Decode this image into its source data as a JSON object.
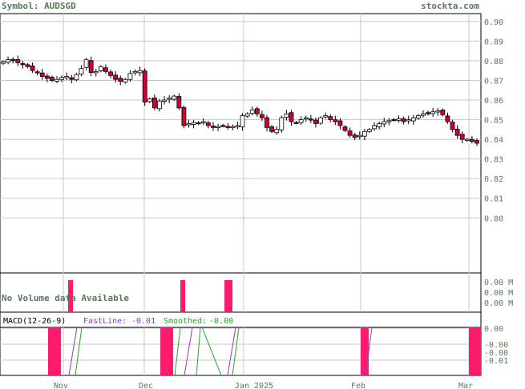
{
  "header": {
    "symbol_label": "Symbol: AUDSGD",
    "brand": "stockta.com"
  },
  "colors": {
    "label_text": "#5a7a5a",
    "grid": "#c8c8c8",
    "frame": "#000000",
    "down_candle": "#cc0033",
    "up_candle": "#ffffff",
    "volume_bar": "#ff1a6e",
    "macd_bar": "#ff1a6e",
    "fast_line": "#9933cc",
    "smoothed_line": "#22aa22"
  },
  "chart_data": [
    {
      "type": "candlestick",
      "name": "price",
      "ylim": [
        0.772,
        0.904
      ],
      "y_ticks": [
        "0.90",
        "0.89",
        "0.88",
        "0.87",
        "0.86",
        "0.85",
        "0.84",
        "0.83",
        "0.82",
        "0.81",
        "0.80"
      ],
      "x_ticks": [
        "Nov",
        "Dec",
        "Jan 2025",
        "Feb",
        "Mar"
      ],
      "grid": true,
      "closes": [
        0.8795,
        0.8805,
        0.88,
        0.879,
        0.878,
        0.877,
        0.875,
        0.874,
        0.872,
        0.871,
        0.87,
        0.8705,
        0.8715,
        0.872,
        0.8705,
        0.873,
        0.876,
        0.8805,
        0.874,
        0.8745,
        0.877,
        0.8745,
        0.8725,
        0.8705,
        0.8695,
        0.8705,
        0.8735,
        0.8745,
        0.875,
        0.859,
        0.8605,
        0.856,
        0.8595,
        0.86,
        0.861,
        0.862,
        0.856,
        0.847,
        0.848,
        0.8485,
        0.848,
        0.849,
        0.847,
        0.846,
        0.8465,
        0.847,
        0.846,
        0.8465,
        0.847,
        0.852,
        0.853,
        0.855,
        0.853,
        0.851,
        0.846,
        0.844,
        0.845,
        0.851,
        0.853,
        0.849,
        0.8485,
        0.85,
        0.851,
        0.85,
        0.848,
        0.851,
        0.852,
        0.85,
        0.849,
        0.847,
        0.8445,
        0.842,
        0.841,
        0.842,
        0.844,
        0.845,
        0.847,
        0.848,
        0.849,
        0.8495,
        0.85,
        0.8505,
        0.849,
        0.85,
        0.851,
        0.852,
        0.853,
        0.8535,
        0.854,
        0.8545,
        0.8525,
        0.849,
        0.845,
        0.842,
        0.84,
        0.84,
        0.839,
        0.838
      ]
    },
    {
      "type": "bar",
      "name": "volume",
      "title": "No Volume data Available",
      "y_ticks": [
        "0.00 M",
        "0.00 M",
        "0.00 M"
      ],
      "x_ticks": [
        "Nov",
        "Dec",
        "Jan 2025",
        "Feb",
        "Mar"
      ]
    },
    {
      "type": "line",
      "name": "macd",
      "title": "MACD(12-26-9)",
      "legend": [
        {
          "label": "FastLine:",
          "value": "-0.01"
        },
        {
          "label": "Smoothed:",
          "value": "-0.00"
        }
      ],
      "y_ticks": [
        "0.00",
        "-0.00",
        "-0.00",
        "-0.01"
      ],
      "x_ticks": [
        "Nov",
        "Dec",
        "Jan 2025",
        "Feb",
        "Mar"
      ]
    }
  ]
}
